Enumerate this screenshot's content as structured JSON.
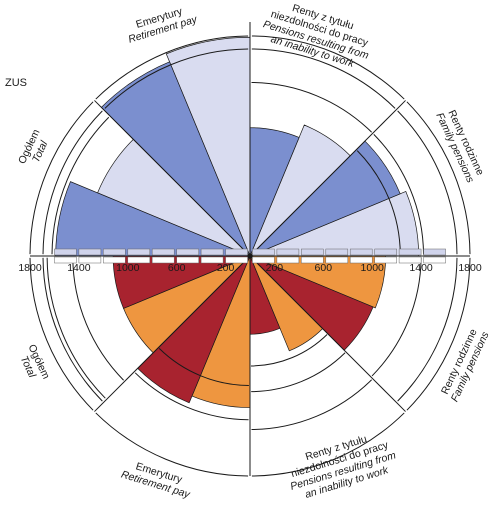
{
  "corner_label": "ZUS",
  "colors": {
    "top_dark": "#7b8fcf",
    "top_light": "#d9dcf0",
    "bottom_red": "#a8232f",
    "bottom_orange": "#ee9640",
    "tick_box": "#d0d4ec"
  },
  "chart_data": {
    "type": "polar-area",
    "axis": {
      "ticks_left": [
        "1800",
        "1400",
        "1000",
        "600",
        "200"
      ],
      "ticks_right": [
        "200",
        "600",
        "1000",
        "1400",
        "1800"
      ],
      "max": 1800
    },
    "top_half": {
      "groups": [
        {
          "name": "Renty rodzinne",
          "name_en": "Family pensions"
        },
        {
          "name": "Renty z tytułu niezdolności do pracy",
          "name_en": "Pensions resulting from an inability to work"
        },
        {
          "name": "Emerytury",
          "name_en": "Retirement pay"
        },
        {
          "name": "Ogółem",
          "name_en": "Total"
        }
      ],
      "wedges": [
        {
          "value": 1380,
          "shade": "light"
        },
        {
          "value": 1330,
          "shade": "dark"
        },
        {
          "value": 1160,
          "shade": "light"
        },
        {
          "value": 1050,
          "shade": "dark"
        },
        {
          "value": 1790,
          "shade": "light"
        },
        {
          "value": 1720,
          "shade": "dark"
        },
        {
          "value": 1350,
          "shade": "light"
        },
        {
          "value": 1590,
          "shade": "dark"
        }
      ]
    },
    "bottom_half": {
      "groups": [
        {
          "name": "Renty rodzinne",
          "name_en": "Family pensions"
        },
        {
          "name": "Renty z tytułu niezdolności do pracy",
          "name_en": "Pensions resulting from an inability to work"
        },
        {
          "name": "Emerytury",
          "name_en": "Retirement pay"
        },
        {
          "name": "Ogółem",
          "name_en": "Total"
        }
      ],
      "wedges": [
        {
          "value": 1110,
          "shade": "orange"
        },
        {
          "value": 1090,
          "shade": "red"
        },
        {
          "value": 840,
          "shade": "orange"
        },
        {
          "value": 640,
          "shade": "red"
        },
        {
          "value": 1240,
          "shade": "orange"
        },
        {
          "value": 1300,
          "shade": "red"
        },
        {
          "value": 1120,
          "shade": "orange"
        },
        {
          "value": 1120,
          "shade": "red"
        }
      ]
    }
  }
}
